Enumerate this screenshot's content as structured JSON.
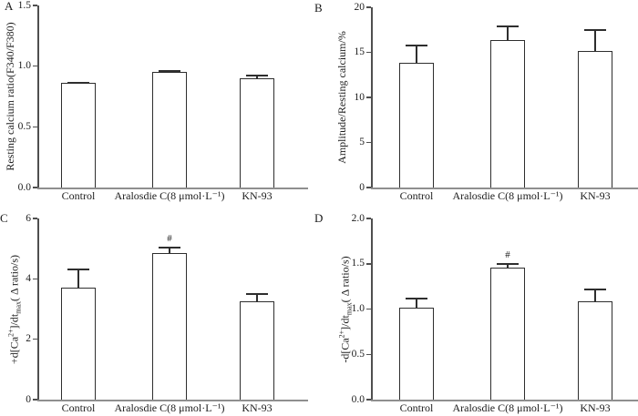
{
  "colors": {
    "background": "#ffffff",
    "text": "#1c1c1c",
    "bar_fill": "#ffffff",
    "bar_border": "#2e2e2e",
    "y_axis": "#4f4f4f",
    "x_axis_baseline": "#8f8f8f"
  },
  "chart_data": [
    {
      "panel": "A",
      "type": "bar",
      "categories": [
        "Control",
        "Aralosdie C(8 μmol·L⁻¹)",
        "KN-93"
      ],
      "values": [
        0.86,
        0.95,
        0.9
      ],
      "errors": [
        0.01,
        0.015,
        0.03
      ],
      "markers": [
        "",
        "",
        ""
      ],
      "ylabel": "Resting calcium ratio(F340/F380)",
      "ylabel_parts": [
        {
          "t": "Resting calcium ratio(F340/F380)"
        }
      ],
      "xlabel": "",
      "ylim": [
        0,
        1.5
      ],
      "yticks": [
        {
          "v": 0.0,
          "label": "0.0"
        },
        {
          "v": 0.5,
          "label": "0.5"
        },
        {
          "v": 1.0,
          "label": "1.0"
        },
        {
          "v": 1.5,
          "label": "1.5"
        }
      ],
      "grid": false,
      "legend": false
    },
    {
      "panel": "B",
      "type": "bar",
      "categories": [
        "Control",
        "Aralosdie C(8 μmol·L⁻¹)",
        "KN-93"
      ],
      "values": [
        13.8,
        16.4,
        15.2
      ],
      "errors": [
        2.1,
        1.6,
        2.4
      ],
      "markers": [
        "",
        "",
        ""
      ],
      "ylabel": "Amplitude/Resting calcium/%",
      "ylabel_parts": [
        {
          "t": "Amplitude/Resting calcium/%"
        }
      ],
      "xlabel": "",
      "ylim": [
        0,
        20
      ],
      "yticks": [
        {
          "v": 0,
          "label": "0"
        },
        {
          "v": 5,
          "label": "5"
        },
        {
          "v": 10,
          "label": "10"
        },
        {
          "v": 15,
          "label": "15"
        },
        {
          "v": 20,
          "label": "20"
        }
      ],
      "grid": false,
      "legend": false
    },
    {
      "panel": "C",
      "type": "bar",
      "categories": [
        "Control",
        "Aralosdie C(8 μmol·L⁻¹)",
        "KN-93"
      ],
      "values": [
        3.72,
        4.85,
        3.25
      ],
      "errors": [
        0.62,
        0.21,
        0.28
      ],
      "markers": [
        "",
        "#",
        ""
      ],
      "ylabel": "+d[Ca2+]/dtmax( Δ ratio/s)",
      "ylabel_parts": [
        {
          "t": "+d[Ca"
        },
        {
          "t": "2+",
          "s": "sup"
        },
        {
          "t": "]/dt"
        },
        {
          "t": "max",
          "s": "sub"
        },
        {
          "t": "( Δ ratio/s)"
        }
      ],
      "xlabel": "",
      "ylim": [
        0,
        6
      ],
      "yticks": [
        {
          "v": 0,
          "label": "0"
        },
        {
          "v": 2,
          "label": "2"
        },
        {
          "v": 4,
          "label": "4"
        },
        {
          "v": 6,
          "label": "6"
        }
      ],
      "grid": false,
      "legend": false
    },
    {
      "panel": "D",
      "type": "bar",
      "categories": [
        "Control",
        "Aralosdie C(8 μmol·L⁻¹)",
        "KN-93"
      ],
      "values": [
        1.02,
        1.46,
        1.09
      ],
      "errors": [
        0.11,
        0.05,
        0.14
      ],
      "markers": [
        "",
        "#",
        ""
      ],
      "ylabel": "-d[Ca2+]/dtmax( Δ ratio/s)",
      "ylabel_parts": [
        {
          "t": "-d[Ca"
        },
        {
          "t": "2+",
          "s": "sup"
        },
        {
          "t": "]/dt"
        },
        {
          "t": "max",
          "s": "sub"
        },
        {
          "t": "( Δ ratio/s)"
        }
      ],
      "xlabel": "",
      "ylim": [
        0,
        2.0
      ],
      "yticks": [
        {
          "v": 0.0,
          "label": "0.0"
        },
        {
          "v": 0.5,
          "label": "0.5"
        },
        {
          "v": 1.0,
          "label": "1.0"
        },
        {
          "v": 1.5,
          "label": "1.5"
        },
        {
          "v": 2.0,
          "label": "2.0"
        }
      ],
      "grid": false,
      "legend": false
    }
  ]
}
